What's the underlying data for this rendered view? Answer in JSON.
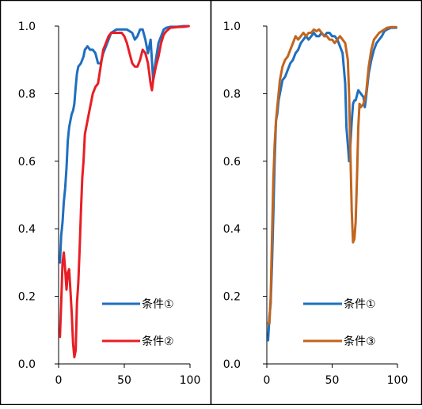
{
  "chart_data": [
    {
      "type": "line",
      "xlim": [
        0,
        100
      ],
      "ylim": [
        0,
        1.0
      ],
      "x_ticks": [
        "0",
        "50",
        "100"
      ],
      "y_ticks": [
        "0.0",
        "0.2",
        "0.4",
        "0.6",
        "0.8",
        "1.0"
      ],
      "legend_position": "bottom-right",
      "grid": false,
      "series": [
        {
          "name": "条件①",
          "color": "#1f6fbf",
          "points": [
            [
              1,
              0.3
            ],
            [
              2,
              0.38
            ],
            [
              3,
              0.42
            ],
            [
              4,
              0.48
            ],
            [
              5,
              0.52
            ],
            [
              6,
              0.58
            ],
            [
              7,
              0.66
            ],
            [
              8,
              0.7
            ],
            [
              9,
              0.72
            ],
            [
              10,
              0.74
            ],
            [
              11,
              0.75
            ],
            [
              12,
              0.77
            ],
            [
              13,
              0.82
            ],
            [
              14,
              0.86
            ],
            [
              15,
              0.88
            ],
            [
              17,
              0.89
            ],
            [
              19,
              0.91
            ],
            [
              20,
              0.93
            ],
            [
              22,
              0.94
            ],
            [
              24,
              0.93
            ],
            [
              26,
              0.93
            ],
            [
              28,
              0.92
            ],
            [
              30,
              0.89
            ],
            [
              32,
              0.89
            ],
            [
              34,
              0.92
            ],
            [
              36,
              0.94
            ],
            [
              38,
              0.96
            ],
            [
              40,
              0.98
            ],
            [
              42,
              0.985
            ],
            [
              44,
              0.99
            ],
            [
              46,
              0.99
            ],
            [
              48,
              0.99
            ],
            [
              50,
              0.99
            ],
            [
              52,
              0.99
            ],
            [
              54,
              0.985
            ],
            [
              56,
              0.98
            ],
            [
              58,
              0.96
            ],
            [
              60,
              0.97
            ],
            [
              62,
              0.99
            ],
            [
              64,
              0.99
            ],
            [
              66,
              0.96
            ],
            [
              68,
              0.92
            ],
            [
              70,
              0.96
            ],
            [
              72,
              0.84
            ],
            [
              74,
              0.9
            ],
            [
              76,
              0.95
            ],
            [
              78,
              0.97
            ],
            [
              80,
              0.99
            ],
            [
              82,
              0.995
            ],
            [
              85,
              0.998
            ],
            [
              90,
              0.998
            ],
            [
              95,
              1.0
            ],
            [
              99,
              1.0
            ]
          ]
        },
        {
          "name": "条件②",
          "color": "#e81e25",
          "points": [
            [
              1,
              0.08
            ],
            [
              2,
              0.18
            ],
            [
              3,
              0.3
            ],
            [
              4,
              0.33
            ],
            [
              5,
              0.28
            ],
            [
              6,
              0.22
            ],
            [
              7,
              0.27
            ],
            [
              8,
              0.28
            ],
            [
              9,
              0.22
            ],
            [
              10,
              0.15
            ],
            [
              11,
              0.06
            ],
            [
              12,
              0.02
            ],
            [
              13,
              0.04
            ],
            [
              14,
              0.18
            ],
            [
              15,
              0.24
            ],
            [
              16,
              0.34
            ],
            [
              17,
              0.45
            ],
            [
              18,
              0.55
            ],
            [
              19,
              0.6
            ],
            [
              20,
              0.68
            ],
            [
              22,
              0.72
            ],
            [
              24,
              0.76
            ],
            [
              26,
              0.8
            ],
            [
              28,
              0.82
            ],
            [
              30,
              0.83
            ],
            [
              32,
              0.88
            ],
            [
              34,
              0.93
            ],
            [
              36,
              0.95
            ],
            [
              38,
              0.97
            ],
            [
              40,
              0.98
            ],
            [
              42,
              0.98
            ],
            [
              44,
              0.98
            ],
            [
              46,
              0.98
            ],
            [
              48,
              0.98
            ],
            [
              50,
              0.97
            ],
            [
              52,
              0.95
            ],
            [
              54,
              0.92
            ],
            [
              56,
              0.89
            ],
            [
              58,
              0.88
            ],
            [
              60,
              0.88
            ],
            [
              62,
              0.9
            ],
            [
              64,
              0.93
            ],
            [
              66,
              0.92
            ],
            [
              68,
              0.89
            ],
            [
              70,
              0.83
            ],
            [
              71,
              0.81
            ],
            [
              72,
              0.84
            ],
            [
              74,
              0.88
            ],
            [
              76,
              0.91
            ],
            [
              78,
              0.95
            ],
            [
              80,
              0.975
            ],
            [
              82,
              0.985
            ],
            [
              85,
              0.995
            ],
            [
              90,
              0.997
            ],
            [
              95,
              0.998
            ],
            [
              99,
              1.0
            ]
          ]
        }
      ]
    },
    {
      "type": "line",
      "xlim": [
        0,
        100
      ],
      "ylim": [
        0,
        1.0
      ],
      "x_ticks": [
        "0",
        "50",
        "100"
      ],
      "y_ticks": [
        "0.0",
        "0.2",
        "0.4",
        "0.6",
        "0.8",
        "1.0"
      ],
      "legend_position": "bottom-right",
      "grid": false,
      "series": [
        {
          "name": "条件①",
          "color": "#1f6fbf",
          "points": [
            [
              1,
              0.07
            ],
            [
              2,
              0.14
            ],
            [
              3,
              0.18
            ],
            [
              4,
              0.3
            ],
            [
              5,
              0.45
            ],
            [
              6,
              0.6
            ],
            [
              7,
              0.72
            ],
            [
              8,
              0.74
            ],
            [
              9,
              0.78
            ],
            [
              10,
              0.8
            ],
            [
              12,
              0.84
            ],
            [
              14,
              0.85
            ],
            [
              16,
              0.87
            ],
            [
              18,
              0.89
            ],
            [
              20,
              0.9
            ],
            [
              22,
              0.92
            ],
            [
              24,
              0.93
            ],
            [
              26,
              0.95
            ],
            [
              28,
              0.96
            ],
            [
              30,
              0.97
            ],
            [
              32,
              0.96
            ],
            [
              34,
              0.97
            ],
            [
              36,
              0.98
            ],
            [
              38,
              0.97
            ],
            [
              40,
              0.97
            ],
            [
              42,
              0.98
            ],
            [
              44,
              0.97
            ],
            [
              46,
              0.98
            ],
            [
              48,
              0.98
            ],
            [
              50,
              0.97
            ],
            [
              52,
              0.97
            ],
            [
              54,
              0.96
            ],
            [
              56,
              0.94
            ],
            [
              58,
              0.92
            ],
            [
              60,
              0.83
            ],
            [
              61,
              0.7
            ],
            [
              62,
              0.65
            ],
            [
              63,
              0.6
            ],
            [
              64,
              0.65
            ],
            [
              65,
              0.72
            ],
            [
              66,
              0.77
            ],
            [
              67,
              0.78
            ],
            [
              68,
              0.78
            ],
            [
              70,
              0.81
            ],
            [
              72,
              0.8
            ],
            [
              74,
              0.79
            ],
            [
              75,
              0.76
            ],
            [
              76,
              0.79
            ],
            [
              78,
              0.86
            ],
            [
              80,
              0.9
            ],
            [
              82,
              0.93
            ],
            [
              84,
              0.95
            ],
            [
              86,
              0.96
            ],
            [
              88,
              0.97
            ],
            [
              90,
              0.985
            ],
            [
              92,
              0.99
            ],
            [
              95,
              0.995
            ],
            [
              99,
              0.995
            ]
          ]
        },
        {
          "name": "条件③",
          "color": "#c1651f",
          "points": [
            [
              1,
              0.12
            ],
            [
              2,
              0.12
            ],
            [
              3,
              0.2
            ],
            [
              4,
              0.38
            ],
            [
              5,
              0.55
            ],
            [
              6,
              0.65
            ],
            [
              7,
              0.72
            ],
            [
              8,
              0.76
            ],
            [
              9,
              0.8
            ],
            [
              10,
              0.84
            ],
            [
              12,
              0.88
            ],
            [
              14,
              0.9
            ],
            [
              16,
              0.91
            ],
            [
              18,
              0.93
            ],
            [
              20,
              0.95
            ],
            [
              22,
              0.97
            ],
            [
              24,
              0.96
            ],
            [
              26,
              0.97
            ],
            [
              28,
              0.98
            ],
            [
              30,
              0.97
            ],
            [
              32,
              0.98
            ],
            [
              34,
              0.98
            ],
            [
              36,
              0.99
            ],
            [
              38,
              0.985
            ],
            [
              40,
              0.99
            ],
            [
              42,
              0.98
            ],
            [
              44,
              0.97
            ],
            [
              46,
              0.97
            ],
            [
              48,
              0.96
            ],
            [
              50,
              0.96
            ],
            [
              52,
              0.95
            ],
            [
              54,
              0.96
            ],
            [
              56,
              0.97
            ],
            [
              58,
              0.96
            ],
            [
              60,
              0.95
            ],
            [
              62,
              0.9
            ],
            [
              63,
              0.8
            ],
            [
              64,
              0.62
            ],
            [
              65,
              0.45
            ],
            [
              66,
              0.36
            ],
            [
              67,
              0.37
            ],
            [
              68,
              0.42
            ],
            [
              69,
              0.55
            ],
            [
              70,
              0.7
            ],
            [
              71,
              0.77
            ],
            [
              72,
              0.76
            ],
            [
              74,
              0.77
            ],
            [
              76,
              0.8
            ],
            [
              78,
              0.88
            ],
            [
              80,
              0.93
            ],
            [
              82,
              0.96
            ],
            [
              84,
              0.97
            ],
            [
              86,
              0.98
            ],
            [
              88,
              0.985
            ],
            [
              90,
              0.99
            ],
            [
              92,
              0.995
            ],
            [
              95,
              0.997
            ],
            [
              99,
              0.997
            ]
          ]
        }
      ]
    }
  ]
}
